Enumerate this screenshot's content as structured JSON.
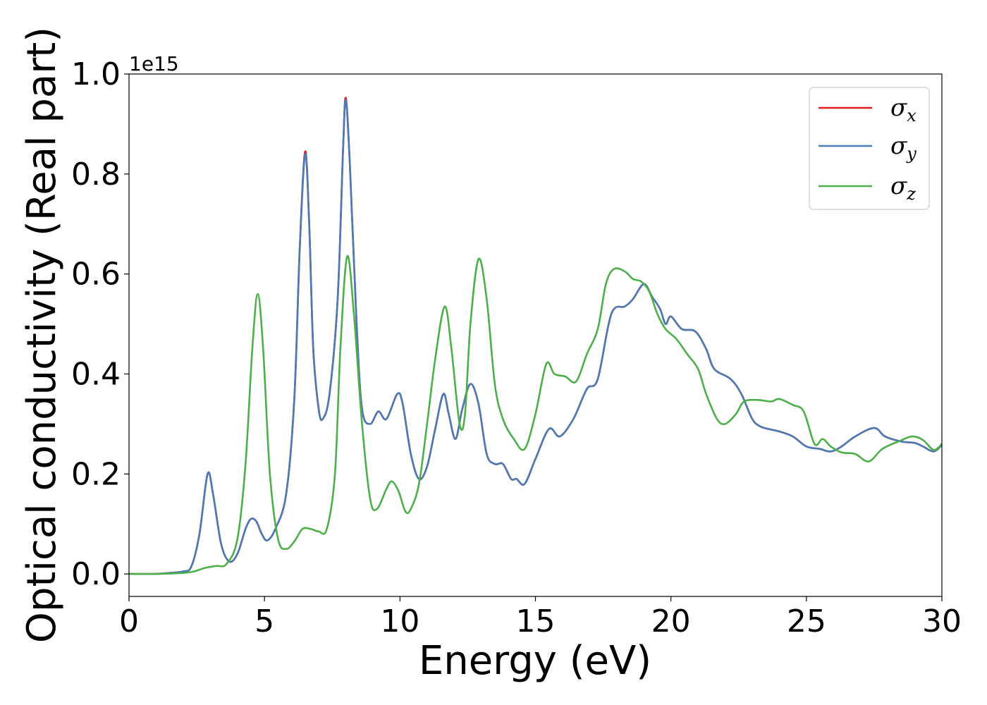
{
  "chart_data": {
    "type": "line",
    "xlabel": "Energy (eV)",
    "ylabel": "Optical conductivity (Real part)",
    "y_offset_label": "1e15",
    "xlim": [
      0,
      30
    ],
    "ylim": [
      -0.045,
      1.0
    ],
    "x_ticks": [
      0,
      5,
      10,
      15,
      20,
      25,
      30
    ],
    "x_tick_labels": [
      "0",
      "5",
      "10",
      "15",
      "20",
      "25",
      "30"
    ],
    "y_ticks": [
      0.0,
      0.2,
      0.4,
      0.6,
      0.8,
      1.0
    ],
    "y_tick_labels": [
      "0.0",
      "0.2",
      "0.4",
      "0.6",
      "0.8",
      "1.0"
    ],
    "grid": false,
    "legend_position": "top-right",
    "series": [
      {
        "name": "σ_x",
        "symbol": "σ",
        "subscript": "x",
        "color": "#e41a1c",
        "points": [
          [
            0,
            0
          ],
          [
            1,
            0.0
          ],
          [
            1.5,
            0.002
          ],
          [
            2,
            0.005
          ],
          [
            2.3,
            0.015
          ],
          [
            2.6,
            0.08
          ],
          [
            2.9,
            0.2
          ],
          [
            3.1,
            0.16
          ],
          [
            3.4,
            0.06
          ],
          [
            3.7,
            0.025
          ],
          [
            4.0,
            0.04
          ],
          [
            4.3,
            0.09
          ],
          [
            4.5,
            0.11
          ],
          [
            4.7,
            0.105
          ],
          [
            4.9,
            0.08
          ],
          [
            5.1,
            0.067
          ],
          [
            5.4,
            0.09
          ],
          [
            5.8,
            0.16
          ],
          [
            6.1,
            0.35
          ],
          [
            6.3,
            0.65
          ],
          [
            6.5,
            0.845
          ],
          [
            6.65,
            0.7
          ],
          [
            6.8,
            0.45
          ],
          [
            7.0,
            0.33
          ],
          [
            7.15,
            0.31
          ],
          [
            7.4,
            0.36
          ],
          [
            7.7,
            0.55
          ],
          [
            7.9,
            0.85
          ],
          [
            8.0,
            0.952
          ],
          [
            8.15,
            0.82
          ],
          [
            8.4,
            0.5
          ],
          [
            8.6,
            0.33
          ],
          [
            8.9,
            0.3
          ],
          [
            9.2,
            0.325
          ],
          [
            9.5,
            0.31
          ],
          [
            9.9,
            0.36
          ],
          [
            10.1,
            0.34
          ],
          [
            10.4,
            0.24
          ],
          [
            10.7,
            0.19
          ],
          [
            11.0,
            0.215
          ],
          [
            11.3,
            0.29
          ],
          [
            11.6,
            0.36
          ],
          [
            11.8,
            0.32
          ],
          [
            12.05,
            0.27
          ],
          [
            12.3,
            0.33
          ],
          [
            12.6,
            0.38
          ],
          [
            12.9,
            0.34
          ],
          [
            13.2,
            0.24
          ],
          [
            13.5,
            0.22
          ],
          [
            13.8,
            0.22
          ],
          [
            14.1,
            0.19
          ],
          [
            14.3,
            0.19
          ],
          [
            14.6,
            0.18
          ],
          [
            15.0,
            0.23
          ],
          [
            15.5,
            0.29
          ],
          [
            15.9,
            0.275
          ],
          [
            16.4,
            0.31
          ],
          [
            16.9,
            0.37
          ],
          [
            17.3,
            0.39
          ],
          [
            17.8,
            0.52
          ],
          [
            18.3,
            0.535
          ],
          [
            18.6,
            0.55
          ],
          [
            19.0,
            0.58
          ],
          [
            19.3,
            0.555
          ],
          [
            19.6,
            0.53
          ],
          [
            19.8,
            0.5
          ],
          [
            20.0,
            0.515
          ],
          [
            20.4,
            0.49
          ],
          [
            20.9,
            0.485
          ],
          [
            21.3,
            0.45
          ],
          [
            21.6,
            0.41
          ],
          [
            22.2,
            0.39
          ],
          [
            22.6,
            0.36
          ],
          [
            23.0,
            0.31
          ],
          [
            23.3,
            0.295
          ],
          [
            23.6,
            0.29
          ],
          [
            24.0,
            0.285
          ],
          [
            24.5,
            0.275
          ],
          [
            25.0,
            0.255
          ],
          [
            25.5,
            0.25
          ],
          [
            25.9,
            0.245
          ],
          [
            26.3,
            0.255
          ],
          [
            26.8,
            0.275
          ],
          [
            27.5,
            0.292
          ],
          [
            27.9,
            0.275
          ],
          [
            28.5,
            0.265
          ],
          [
            29.0,
            0.262
          ],
          [
            29.3,
            0.255
          ],
          [
            29.7,
            0.245
          ],
          [
            30.0,
            0.258
          ]
        ]
      },
      {
        "name": "σ_y",
        "symbol": "σ",
        "subscript": "y",
        "color": "#4a7bb7",
        "points": [
          [
            0,
            0
          ],
          [
            1,
            0.0
          ],
          [
            1.5,
            0.002
          ],
          [
            2,
            0.005
          ],
          [
            2.3,
            0.015
          ],
          [
            2.6,
            0.08
          ],
          [
            2.9,
            0.2
          ],
          [
            3.1,
            0.16
          ],
          [
            3.4,
            0.06
          ],
          [
            3.7,
            0.025
          ],
          [
            4.0,
            0.04
          ],
          [
            4.3,
            0.09
          ],
          [
            4.5,
            0.11
          ],
          [
            4.7,
            0.105
          ],
          [
            4.9,
            0.08
          ],
          [
            5.1,
            0.067
          ],
          [
            5.4,
            0.09
          ],
          [
            5.8,
            0.16
          ],
          [
            6.1,
            0.35
          ],
          [
            6.3,
            0.65
          ],
          [
            6.5,
            0.84
          ],
          [
            6.65,
            0.7
          ],
          [
            6.8,
            0.45
          ],
          [
            7.0,
            0.33
          ],
          [
            7.15,
            0.31
          ],
          [
            7.4,
            0.36
          ],
          [
            7.7,
            0.55
          ],
          [
            7.9,
            0.85
          ],
          [
            8.0,
            0.948
          ],
          [
            8.15,
            0.82
          ],
          [
            8.4,
            0.5
          ],
          [
            8.6,
            0.33
          ],
          [
            8.9,
            0.3
          ],
          [
            9.2,
            0.325
          ],
          [
            9.5,
            0.31
          ],
          [
            9.9,
            0.36
          ],
          [
            10.1,
            0.34
          ],
          [
            10.4,
            0.24
          ],
          [
            10.7,
            0.19
          ],
          [
            11.0,
            0.215
          ],
          [
            11.3,
            0.29
          ],
          [
            11.6,
            0.36
          ],
          [
            11.8,
            0.32
          ],
          [
            12.05,
            0.27
          ],
          [
            12.3,
            0.33
          ],
          [
            12.6,
            0.38
          ],
          [
            12.9,
            0.34
          ],
          [
            13.2,
            0.24
          ],
          [
            13.5,
            0.22
          ],
          [
            13.8,
            0.22
          ],
          [
            14.1,
            0.19
          ],
          [
            14.3,
            0.19
          ],
          [
            14.6,
            0.18
          ],
          [
            15.0,
            0.23
          ],
          [
            15.5,
            0.29
          ],
          [
            15.9,
            0.275
          ],
          [
            16.4,
            0.31
          ],
          [
            16.9,
            0.37
          ],
          [
            17.3,
            0.39
          ],
          [
            17.8,
            0.52
          ],
          [
            18.3,
            0.535
          ],
          [
            18.6,
            0.55
          ],
          [
            19.0,
            0.58
          ],
          [
            19.3,
            0.555
          ],
          [
            19.6,
            0.53
          ],
          [
            19.8,
            0.5
          ],
          [
            20.0,
            0.515
          ],
          [
            20.4,
            0.49
          ],
          [
            20.9,
            0.485
          ],
          [
            21.3,
            0.45
          ],
          [
            21.6,
            0.41
          ],
          [
            22.2,
            0.39
          ],
          [
            22.6,
            0.36
          ],
          [
            23.0,
            0.31
          ],
          [
            23.3,
            0.295
          ],
          [
            23.6,
            0.29
          ],
          [
            24.0,
            0.285
          ],
          [
            24.5,
            0.275
          ],
          [
            25.0,
            0.255
          ],
          [
            25.5,
            0.25
          ],
          [
            25.9,
            0.245
          ],
          [
            26.3,
            0.255
          ],
          [
            26.8,
            0.275
          ],
          [
            27.5,
            0.292
          ],
          [
            27.9,
            0.275
          ],
          [
            28.5,
            0.265
          ],
          [
            29.0,
            0.262
          ],
          [
            29.3,
            0.255
          ],
          [
            29.7,
            0.245
          ],
          [
            30.0,
            0.258
          ]
        ]
      },
      {
        "name": "σ_z",
        "symbol": "σ",
        "subscript": "z",
        "color": "#4daf4a",
        "points": [
          [
            0,
            0
          ],
          [
            1,
            0.0
          ],
          [
            2,
            0.002
          ],
          [
            2.4,
            0.005
          ],
          [
            2.8,
            0.012
          ],
          [
            3.2,
            0.016
          ],
          [
            3.6,
            0.02
          ],
          [
            4.0,
            0.07
          ],
          [
            4.3,
            0.22
          ],
          [
            4.55,
            0.45
          ],
          [
            4.75,
            0.56
          ],
          [
            4.95,
            0.45
          ],
          [
            5.2,
            0.2
          ],
          [
            5.5,
            0.07
          ],
          [
            5.8,
            0.05
          ],
          [
            6.1,
            0.065
          ],
          [
            6.4,
            0.09
          ],
          [
            6.7,
            0.09
          ],
          [
            7.0,
            0.085
          ],
          [
            7.3,
            0.09
          ],
          [
            7.6,
            0.2
          ],
          [
            7.8,
            0.45
          ],
          [
            8.05,
            0.635
          ],
          [
            8.3,
            0.52
          ],
          [
            8.6,
            0.3
          ],
          [
            8.9,
            0.15
          ],
          [
            9.15,
            0.13
          ],
          [
            9.5,
            0.17
          ],
          [
            9.7,
            0.185
          ],
          [
            9.95,
            0.165
          ],
          [
            10.2,
            0.125
          ],
          [
            10.4,
            0.13
          ],
          [
            10.7,
            0.18
          ],
          [
            11.0,
            0.3
          ],
          [
            11.3,
            0.43
          ],
          [
            11.65,
            0.535
          ],
          [
            11.9,
            0.45
          ],
          [
            12.2,
            0.3
          ],
          [
            12.4,
            0.32
          ],
          [
            12.6,
            0.5
          ],
          [
            12.9,
            0.63
          ],
          [
            13.2,
            0.55
          ],
          [
            13.5,
            0.38
          ],
          [
            13.8,
            0.31
          ],
          [
            14.2,
            0.27
          ],
          [
            14.6,
            0.25
          ],
          [
            15.0,
            0.32
          ],
          [
            15.4,
            0.42
          ],
          [
            15.7,
            0.4
          ],
          [
            16.1,
            0.395
          ],
          [
            16.5,
            0.385
          ],
          [
            16.9,
            0.44
          ],
          [
            17.3,
            0.49
          ],
          [
            17.6,
            0.58
          ],
          [
            17.9,
            0.61
          ],
          [
            18.3,
            0.605
          ],
          [
            18.6,
            0.59
          ],
          [
            18.9,
            0.585
          ],
          [
            19.2,
            0.565
          ],
          [
            19.5,
            0.52
          ],
          [
            19.8,
            0.49
          ],
          [
            20.2,
            0.47
          ],
          [
            20.6,
            0.44
          ],
          [
            21.0,
            0.41
          ],
          [
            21.3,
            0.36
          ],
          [
            21.7,
            0.31
          ],
          [
            22.0,
            0.3
          ],
          [
            22.4,
            0.32
          ],
          [
            22.7,
            0.345
          ],
          [
            23.2,
            0.348
          ],
          [
            23.7,
            0.345
          ],
          [
            24.0,
            0.35
          ],
          [
            24.5,
            0.338
          ],
          [
            24.9,
            0.325
          ],
          [
            25.3,
            0.26
          ],
          [
            25.6,
            0.27
          ],
          [
            25.9,
            0.255
          ],
          [
            26.3,
            0.243
          ],
          [
            26.8,
            0.24
          ],
          [
            27.3,
            0.225
          ],
          [
            27.8,
            0.25
          ],
          [
            28.4,
            0.265
          ],
          [
            28.9,
            0.275
          ],
          [
            29.3,
            0.268
          ],
          [
            29.7,
            0.248
          ],
          [
            30.0,
            0.26
          ]
        ]
      }
    ]
  }
}
